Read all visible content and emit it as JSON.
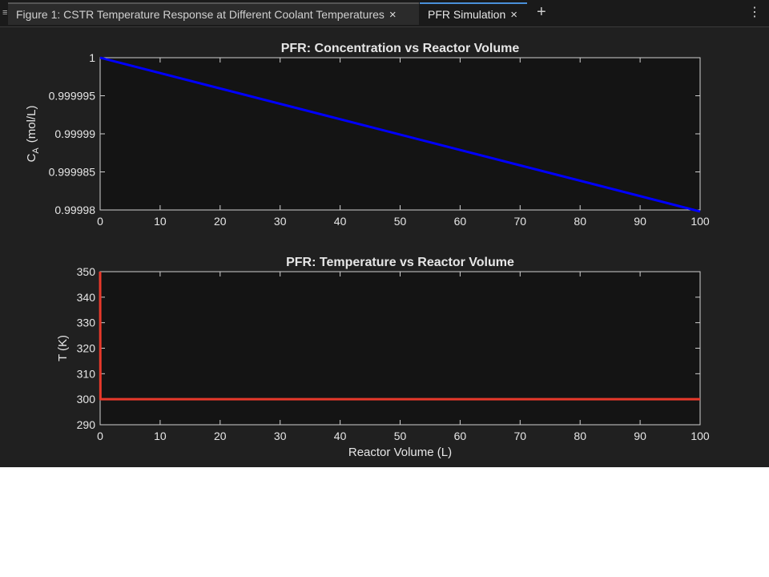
{
  "tabs": [
    {
      "label": "Figure 1: CSTR Temperature Response at Different Coolant Temperatures",
      "close": "×"
    },
    {
      "label": "PFR Simulation",
      "close": "×"
    }
  ],
  "add_tab": "+",
  "menu": "⋮",
  "icons": {
    "grip": "grip-icon",
    "close": "close-icon",
    "add": "plus-icon",
    "menu": "more-vertical-icon"
  },
  "colors": {
    "background": "#202020",
    "axes_bg": "#141414",
    "concentration_line": "#0000ff",
    "temperature_line": "#e8392b",
    "text": "#e6e6e6"
  },
  "chart_data": [
    {
      "type": "line",
      "title": "PFR: Concentration vs Reactor Volume",
      "xlabel": "",
      "ylabel": "C_A (mol/L)",
      "ylabel_main": "C",
      "ylabel_sub": "A",
      "ylabel_rest": "(mol/L)",
      "xlim": [
        0,
        100
      ],
      "ylim": [
        0.99998,
        1
      ],
      "xticks": [
        0,
        10,
        20,
        30,
        40,
        50,
        60,
        70,
        80,
        90,
        100
      ],
      "xtick_labels": [
        "0",
        "10",
        "20",
        "30",
        "40",
        "50",
        "60",
        "70",
        "80",
        "90",
        "100"
      ],
      "yticks": [
        0.99998,
        0.999985,
        0.99999,
        0.999995,
        1
      ],
      "ytick_labels": [
        "0.99998",
        "0.999985",
        "0.99999",
        "0.999995",
        "1"
      ],
      "series": [
        {
          "x": [
            0,
            100
          ],
          "y": [
            1,
            0.9999798
          ]
        }
      ]
    },
    {
      "type": "line",
      "title": "PFR: Temperature vs Reactor Volume",
      "xlabel": "Reactor Volume (L)",
      "ylabel": "T (K)",
      "xlim": [
        0,
        100
      ],
      "ylim": [
        290,
        350
      ],
      "xticks": [
        0,
        10,
        20,
        30,
        40,
        50,
        60,
        70,
        80,
        90,
        100
      ],
      "xtick_labels": [
        "0",
        "10",
        "20",
        "30",
        "40",
        "50",
        "60",
        "70",
        "80",
        "90",
        "100"
      ],
      "yticks": [
        290,
        300,
        310,
        320,
        330,
        340,
        350
      ],
      "ytick_labels": [
        "290",
        "300",
        "310",
        "320",
        "330",
        "340",
        "350"
      ],
      "series": [
        {
          "x": [
            0,
            0.05,
            0.1,
            100
          ],
          "y": [
            350,
            300,
            300,
            300
          ]
        }
      ]
    }
  ]
}
